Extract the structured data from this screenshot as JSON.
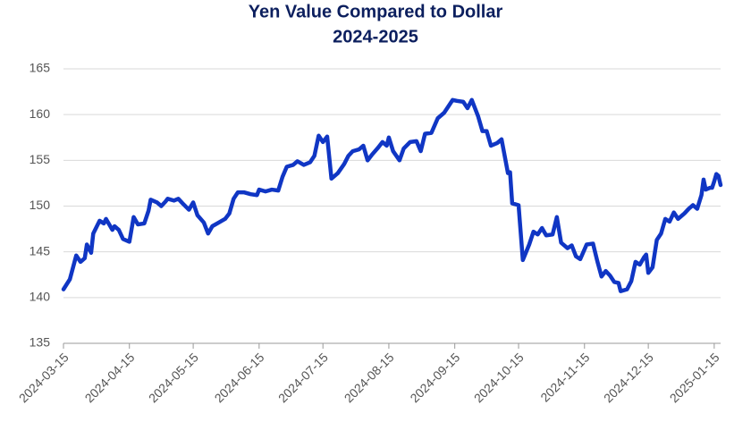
{
  "chart_data": {
    "type": "line",
    "title": "Yen Value Compared to Dollar",
    "subtitle": "2024-2025",
    "x": [
      "2024-03-15",
      "2024-03-18",
      "2024-03-21",
      "2024-03-23",
      "2024-03-25",
      "2024-03-26",
      "2024-03-28",
      "2024-03-29",
      "2024-04-01",
      "2024-04-03",
      "2024-04-04",
      "2024-04-07",
      "2024-04-08",
      "2024-04-10",
      "2024-04-12",
      "2024-04-15",
      "2024-04-17",
      "2024-04-19",
      "2024-04-22",
      "2024-04-24",
      "2024-04-25",
      "2024-04-28",
      "2024-04-30",
      "2024-05-02",
      "2024-05-03",
      "2024-05-06",
      "2024-05-08",
      "2024-05-10",
      "2024-05-13",
      "2024-05-15",
      "2024-05-17",
      "2024-05-20",
      "2024-05-22",
      "2024-05-24",
      "2024-05-27",
      "2024-05-30",
      "2024-06-01",
      "2024-06-03",
      "2024-06-05",
      "2024-06-08",
      "2024-06-11",
      "2024-06-14",
      "2024-06-15",
      "2024-06-18",
      "2024-06-21",
      "2024-06-24",
      "2024-06-26",
      "2024-06-28",
      "2024-07-01",
      "2024-07-03",
      "2024-07-06",
      "2024-07-09",
      "2024-07-11",
      "2024-07-13",
      "2024-07-15",
      "2024-07-17",
      "2024-07-19",
      "2024-07-22",
      "2024-07-25",
      "2024-07-27",
      "2024-07-29",
      "2024-08-01",
      "2024-08-03",
      "2024-08-05",
      "2024-08-07",
      "2024-08-10",
      "2024-08-12",
      "2024-08-14",
      "2024-08-15",
      "2024-08-17",
      "2024-08-20",
      "2024-08-22",
      "2024-08-25",
      "2024-08-28",
      "2024-08-30",
      "2024-09-01",
      "2024-09-04",
      "2024-09-07",
      "2024-09-10",
      "2024-09-12",
      "2024-09-14",
      "2024-09-16",
      "2024-09-19",
      "2024-09-21",
      "2024-09-23",
      "2024-09-26",
      "2024-09-28",
      "2024-09-30",
      "2024-10-02",
      "2024-10-05",
      "2024-10-07",
      "2024-10-10",
      "2024-10-11",
      "2024-10-12",
      "2024-10-15",
      "2024-10-17",
      "2024-10-20",
      "2024-10-22",
      "2024-10-24",
      "2024-10-26",
      "2024-10-28",
      "2024-10-31",
      "2024-11-02",
      "2024-11-04",
      "2024-11-07",
      "2024-11-09",
      "2024-11-11",
      "2024-11-13",
      "2024-11-16",
      "2024-11-19",
      "2024-11-21",
      "2024-11-23",
      "2024-11-25",
      "2024-11-27",
      "2024-11-29",
      "2024-12-01",
      "2024-12-02",
      "2024-12-05",
      "2024-12-07",
      "2024-12-09",
      "2024-12-11",
      "2024-12-13",
      "2024-12-14",
      "2024-12-15",
      "2024-12-17",
      "2024-12-19",
      "2024-12-21",
      "2024-12-23",
      "2024-12-25",
      "2024-12-27",
      "2024-12-29",
      "2025-01-01",
      "2025-01-03",
      "2025-01-05",
      "2025-01-07",
      "2025-01-09",
      "2025-01-10",
      "2025-01-11",
      "2025-01-13",
      "2025-01-14",
      "2025-01-15",
      "2025-01-16",
      "2025-01-17",
      "2025-01-18"
    ],
    "series": [
      {
        "color": "#1036c4",
        "values": [
          140.9,
          142.0,
          144.6,
          143.9,
          144.3,
          145.8,
          144.9,
          147.0,
          148.4,
          148.1,
          148.6,
          147.4,
          147.8,
          147.4,
          146.4,
          146.1,
          148.8,
          148.0,
          148.1,
          149.5,
          150.7,
          150.4,
          150.0,
          150.5,
          150.8,
          150.6,
          150.8,
          150.3,
          149.6,
          150.4,
          149.0,
          148.2,
          147.0,
          147.8,
          148.2,
          148.6,
          149.2,
          150.8,
          151.5,
          151.5,
          151.3,
          151.2,
          151.8,
          151.6,
          151.8,
          151.7,
          153.2,
          154.3,
          154.5,
          154.9,
          154.5,
          154.8,
          155.5,
          157.7,
          157.0,
          157.6,
          153.0,
          153.6,
          154.6,
          155.5,
          156.0,
          156.2,
          156.6,
          155.0,
          155.6,
          156.4,
          157.0,
          156.6,
          157.5,
          156.0,
          155.0,
          156.3,
          157.0,
          157.1,
          156.0,
          157.9,
          158.0,
          159.6,
          160.2,
          160.9,
          161.6,
          161.5,
          161.4,
          160.7,
          161.6,
          159.8,
          158.2,
          158.2,
          156.6,
          156.9,
          157.3,
          153.6,
          153.7,
          150.3,
          150.1,
          144.1,
          145.8,
          147.2,
          146.9,
          147.6,
          146.8,
          146.9,
          148.8,
          146.0,
          145.4,
          145.7,
          144.5,
          144.2,
          145.8,
          145.9,
          144.0,
          142.3,
          142.9,
          142.4,
          141.7,
          141.6,
          140.7,
          140.9,
          141.8,
          143.9,
          143.6,
          144.4,
          144.7,
          142.7,
          143.3,
          146.3,
          147.0,
          148.6,
          148.3,
          149.3,
          148.6,
          149.2,
          149.7,
          150.1,
          149.7,
          151.2,
          152.9,
          151.8,
          152.0,
          152.0,
          152.7,
          153.5,
          153.3,
          152.3
        ]
      }
    ],
    "xlim": [
      "2024-03-15",
      "2025-01-18"
    ],
    "xticks": [
      "2024-03-15",
      "2024-04-15",
      "2024-05-15",
      "2024-06-15",
      "2024-07-15",
      "2024-08-15",
      "2024-09-15",
      "2024-10-15",
      "2024-11-15",
      "2024-12-15",
      "2025-01-15"
    ],
    "ylim": [
      135,
      165
    ],
    "yticks": [
      135,
      140,
      145,
      150,
      155,
      160,
      165
    ],
    "grid": true
  }
}
